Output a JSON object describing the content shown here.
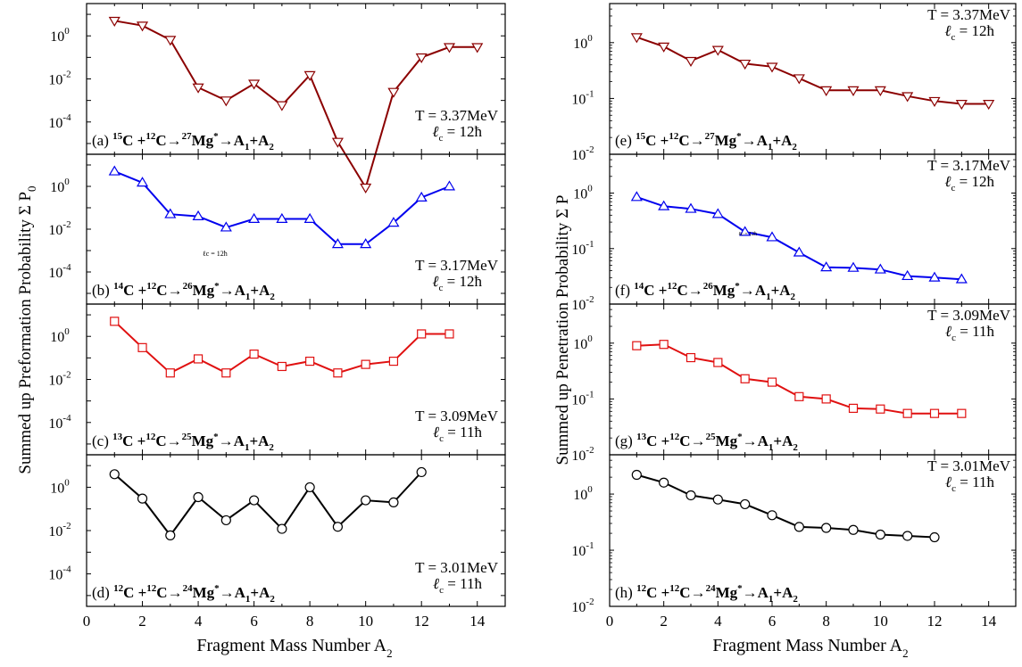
{
  "figure": {
    "left_ylabel": "Summed up Preformation Probability Σ P",
    "left_ylabel_sub": "0",
    "right_ylabel": "Summed up Penetration Probability Σ P",
    "xlabel_left": "Fragment Mass Number A",
    "xlabel_right": "Fragment Mass Number A",
    "xlabel_sub": "2"
  },
  "chart_data": [
    {
      "id": "a",
      "type": "line",
      "scale": "log",
      "xlim": [
        0,
        15
      ],
      "ylim_log10": [
        -5.5,
        1.5
      ],
      "xticks": [
        0,
        2,
        4,
        6,
        8,
        10,
        12,
        14
      ],
      "yticks_exp": [
        0,
        -2,
        -4
      ],
      "color": "#8b0000",
      "marker": "triangle-down",
      "reaction": [
        "(a) ",
        "15",
        "C +",
        "12",
        "C→",
        "27",
        "Mg",
        "*",
        "→A",
        "1",
        "+A",
        "2"
      ],
      "temperature": "T = 3.37MeV",
      "lc": "ℓ",
      "lc_sub": "c",
      "lc_val": " = 12ħ",
      "x": [
        1,
        2,
        3,
        4,
        5,
        6,
        7,
        8,
        9,
        10,
        11,
        12,
        13,
        14
      ],
      "y": [
        5.0,
        3.0,
        0.65,
        0.004,
        0.001,
        0.006,
        0.0006,
        0.015,
        1.2e-05,
        9e-08,
        0.0025,
        0.1,
        0.3,
        0.3
      ]
    },
    {
      "id": "b",
      "type": "line",
      "scale": "log",
      "xlim": [
        0,
        15
      ],
      "ylim_log10": [
        -5.5,
        1.5
      ],
      "xticks": [
        0,
        2,
        4,
        6,
        8,
        10,
        12,
        14
      ],
      "yticks_exp": [
        0,
        -2,
        -4
      ],
      "color": "#0000ee",
      "marker": "triangle-up",
      "reaction": [
        "(b) ",
        "14",
        "C +",
        "12",
        "C→",
        "26",
        "Mg",
        "*",
        "→A",
        "1",
        "+A",
        "2"
      ],
      "temperature": "T = 3.17MeV",
      "lc": "ℓ",
      "lc_sub": "c",
      "lc_val": " = 12ħ",
      "inner_note": "ℓc = 12ħ",
      "x": [
        1,
        2,
        3,
        4,
        5,
        6,
        7,
        8,
        9,
        10,
        11,
        12,
        13
      ],
      "y": [
        5.0,
        1.5,
        0.05,
        0.04,
        0.012,
        0.03,
        0.03,
        0.03,
        0.002,
        0.002,
        0.02,
        0.3,
        1.0
      ]
    },
    {
      "id": "c",
      "type": "line",
      "scale": "log",
      "xlim": [
        0,
        15
      ],
      "ylim_log10": [
        -5.5,
        1.5
      ],
      "xticks": [
        0,
        2,
        4,
        6,
        8,
        10,
        12,
        14
      ],
      "yticks_exp": [
        0,
        -2,
        -4
      ],
      "color": "#e01010",
      "marker": "square",
      "reaction": [
        "(c) ",
        "13",
        "C +",
        "12",
        "C→",
        "25",
        "Mg",
        "*",
        "→A",
        "1",
        "+A",
        "2"
      ],
      "temperature": "T = 3.09MeV",
      "lc": "ℓ",
      "lc_sub": "c",
      "lc_val": " = 11ħ",
      "x": [
        1,
        2,
        3,
        4,
        5,
        6,
        7,
        8,
        9,
        10,
        11,
        12,
        13
      ],
      "y": [
        5.0,
        0.3,
        0.02,
        0.09,
        0.02,
        0.15,
        0.04,
        0.07,
        0.02,
        0.05,
        0.07,
        1.3,
        1.3
      ]
    },
    {
      "id": "d",
      "type": "line",
      "scale": "log",
      "xlim": [
        0,
        15
      ],
      "ylim_log10": [
        -5.5,
        1.5
      ],
      "xticks": [
        0,
        2,
        4,
        6,
        8,
        10,
        12,
        14
      ],
      "yticks_exp": [
        0,
        -2,
        -4
      ],
      "color": "#000000",
      "marker": "circle",
      "reaction": [
        "(d) ",
        "12",
        "C +",
        "12",
        "C→",
        "24",
        "Mg",
        "*",
        "→A",
        "1",
        "+A",
        "2"
      ],
      "temperature": "T = 3.01MeV",
      "lc": "ℓ",
      "lc_sub": "c",
      "lc_val": " = 11ħ",
      "x": [
        1,
        2,
        3,
        4,
        5,
        6,
        7,
        8,
        9,
        10,
        11,
        12
      ],
      "y": [
        4.0,
        0.3,
        0.006,
        0.35,
        0.03,
        0.25,
        0.012,
        1.0,
        0.015,
        0.25,
        0.2,
        5.0
      ]
    },
    {
      "id": "e",
      "type": "line",
      "scale": "log",
      "xlim": [
        0,
        15
      ],
      "ylim_log10": [
        -2,
        0.7
      ],
      "xticks": [
        0,
        2,
        4,
        6,
        8,
        10,
        12,
        14
      ],
      "yticks_exp": [
        0,
        -1,
        -2
      ],
      "color": "#8b0000",
      "marker": "triangle-down",
      "reaction": [
        "(e) ",
        "15",
        "C +",
        "12",
        "C→",
        "27",
        "Mg",
        "*",
        "→A",
        "1",
        "+A",
        "2"
      ],
      "temperature": "T = 3.37MeV",
      "lc": "ℓ",
      "lc_sub": "c",
      "lc_val": " = 12ħ",
      "x": [
        1,
        2,
        3,
        4,
        5,
        6,
        7,
        8,
        9,
        10,
        11,
        12,
        13,
        14
      ],
      "y": [
        1.25,
        0.85,
        0.47,
        0.74,
        0.42,
        0.37,
        0.23,
        0.14,
        0.14,
        0.14,
        0.11,
        0.09,
        0.08,
        0.08
      ]
    },
    {
      "id": "f",
      "type": "line",
      "scale": "log",
      "xlim": [
        0,
        15
      ],
      "ylim_log10": [
        -2,
        0.7
      ],
      "xticks": [
        0,
        2,
        4,
        6,
        8,
        10,
        12,
        14
      ],
      "yticks_exp": [
        0,
        -1,
        -2
      ],
      "color": "#0000ee",
      "marker": "triangle-up",
      "reaction": [
        "(f) ",
        "14",
        "C +",
        "12",
        "C→",
        "26",
        "Mg",
        "*",
        "→A",
        "1",
        "+A",
        "2"
      ],
      "temperature": "T = 3.17MeV",
      "lc": "ℓ",
      "lc_sub": "c",
      "lc_val": " = 12ħ",
      "inner_note": "ℓc = 12ħ",
      "x": [
        1,
        2,
        3,
        4,
        5,
        6,
        7,
        8,
        9,
        10,
        11,
        12,
        13
      ],
      "y": [
        0.85,
        0.58,
        0.52,
        0.42,
        0.2,
        0.16,
        0.085,
        0.046,
        0.045,
        0.042,
        0.032,
        0.03,
        0.028
      ]
    },
    {
      "id": "g",
      "type": "line",
      "scale": "log",
      "xlim": [
        0,
        15
      ],
      "ylim_log10": [
        -2,
        0.7
      ],
      "xticks": [
        0,
        2,
        4,
        6,
        8,
        10,
        12,
        14
      ],
      "yticks_exp": [
        0,
        -1,
        -2
      ],
      "color": "#e01010",
      "marker": "square",
      "reaction": [
        "(g) ",
        "13",
        "C +",
        "12",
        "C→",
        "25",
        "Mg",
        "*",
        "→A",
        "1",
        "+A",
        "2"
      ],
      "temperature": "T = 3.09MeV",
      "lc": "ℓ",
      "lc_sub": "c",
      "lc_val": " = 11ħ",
      "x": [
        1,
        2,
        3,
        4,
        5,
        6,
        7,
        8,
        9,
        10,
        11,
        12,
        13
      ],
      "y": [
        0.9,
        0.95,
        0.55,
        0.45,
        0.23,
        0.2,
        0.11,
        0.1,
        0.068,
        0.066,
        0.055,
        0.055,
        0.055
      ]
    },
    {
      "id": "h",
      "type": "line",
      "scale": "log",
      "xlim": [
        0,
        15
      ],
      "ylim_log10": [
        -2,
        0.7
      ],
      "xticks": [
        0,
        2,
        4,
        6,
        8,
        10,
        12,
        14
      ],
      "yticks_exp": [
        0,
        -1,
        -2
      ],
      "color": "#000000",
      "marker": "circle",
      "reaction": [
        "(h) ",
        "12",
        "C +",
        "12",
        "C→",
        "24",
        "Mg",
        "*",
        "→A",
        "1",
        "+A",
        "2"
      ],
      "temperature": "T = 3.01MeV",
      "lc": "ℓ",
      "lc_sub": "c",
      "lc_val": " = 11ħ",
      "x": [
        1,
        2,
        3,
        4,
        5,
        6,
        7,
        8,
        9,
        10,
        11,
        12
      ],
      "y": [
        2.2,
        1.6,
        0.95,
        0.8,
        0.66,
        0.42,
        0.26,
        0.25,
        0.23,
        0.19,
        0.18,
        0.17
      ]
    }
  ]
}
